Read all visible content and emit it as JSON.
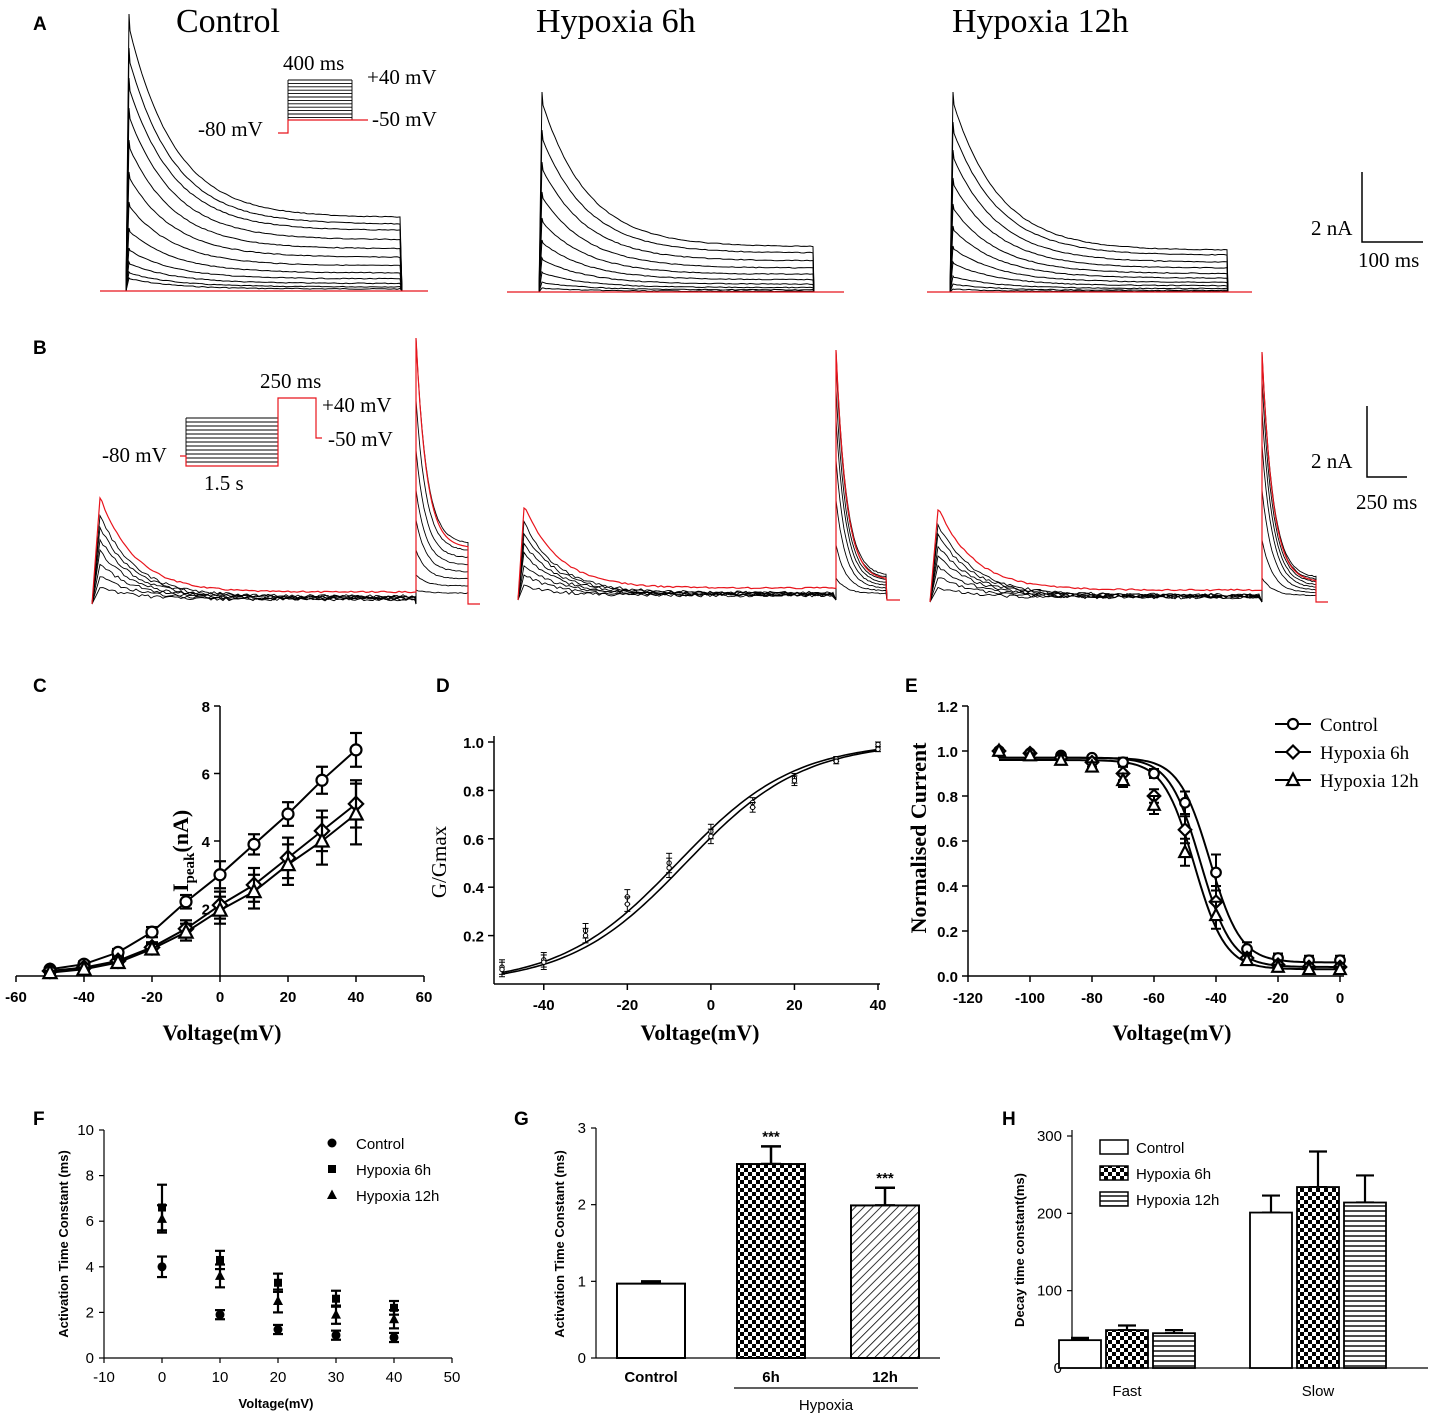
{
  "panel_labels": {
    "A": "A",
    "B": "B",
    "C": "C",
    "D": "D",
    "E": "E",
    "F": "F",
    "G": "G",
    "H": "H"
  },
  "traces": {
    "titles": [
      "Control",
      "Hypoxia 6h",
      "Hypoxia 12h"
    ],
    "protocol_a": {
      "duration": "400 ms",
      "v_top": "+40 mV",
      "v_hold": "-80 mV",
      "v_low": "-50 mV"
    },
    "protocol_b": {
      "duration": "250 ms",
      "v_top": "+40 mV",
      "v_hold": "-80 mV",
      "v_low": "-50 mV",
      "prepulse": "1.5 s"
    },
    "scale_a": {
      "current": "2 nA",
      "time": "100 ms"
    },
    "scale_b": {
      "current": "2 nA",
      "time": "250 ms"
    },
    "colors": {
      "trace": "#000000",
      "highlight": "#e8141c"
    }
  },
  "chart_data": [
    {
      "id": "C",
      "type": "line",
      "title": "",
      "xlabel": "Voltage(mV)",
      "ylabel_main": "I",
      "ylabel_sub": "peak",
      "ylabel_tail": "(nA)",
      "xlim": [
        -60,
        60
      ],
      "ylim": [
        0,
        8
      ],
      "xticks": [
        -60,
        -40,
        -20,
        0,
        20,
        40,
        60
      ],
      "yticks": [
        2,
        4,
        6,
        8
      ],
      "x": [
        -50,
        -40,
        -30,
        -20,
        -10,
        0,
        10,
        20,
        30,
        40
      ],
      "series": [
        {
          "name": "Control",
          "marker": "circle",
          "values": [
            0.2,
            0.35,
            0.7,
            1.3,
            2.2,
            3.0,
            3.9,
            4.8,
            5.8,
            6.7
          ],
          "err": [
            0.05,
            0.08,
            0.1,
            0.15,
            0.2,
            0.4,
            0.3,
            0.35,
            0.4,
            0.5
          ]
        },
        {
          "name": "Hypoxia 6h",
          "marker": "diamond",
          "values": [
            0.15,
            0.25,
            0.45,
            0.85,
            1.4,
            2.1,
            2.7,
            3.5,
            4.3,
            5.1
          ],
          "err": [
            0.05,
            0.05,
            0.1,
            0.15,
            0.25,
            0.4,
            0.5,
            0.6,
            0.6,
            0.7
          ]
        },
        {
          "name": "Hypoxia 12h",
          "marker": "triangle",
          "values": [
            0.1,
            0.2,
            0.4,
            0.8,
            1.3,
            1.95,
            2.5,
            3.3,
            4.0,
            4.8
          ],
          "err": [
            0.05,
            0.05,
            0.1,
            0.15,
            0.25,
            0.4,
            0.5,
            0.6,
            0.7,
            0.9
          ]
        }
      ]
    },
    {
      "id": "D",
      "type": "line",
      "title": "",
      "xlabel": "Voltage(mV)",
      "ylabel": "G/Gmax",
      "xlim": [
        -50,
        40
      ],
      "ylim": [
        0,
        1.0
      ],
      "xticks": [
        -40,
        -20,
        0,
        20,
        40
      ],
      "yticks": [
        0.2,
        0.4,
        0.6,
        0.8,
        1.0
      ],
      "x": [
        -50,
        -40,
        -30,
        -20,
        -10,
        0,
        10,
        20,
        30,
        40
      ],
      "series": [
        {
          "name": "Control",
          "values": [
            0.07,
            0.1,
            0.22,
            0.36,
            0.5,
            0.63,
            0.75,
            0.85,
            0.93,
            0.99
          ],
          "err": [
            0.03,
            0.03,
            0.03,
            0.03,
            0.04,
            0.03,
            0.02,
            0.02,
            0.01,
            0.01
          ]
        },
        {
          "name": "Hypoxia",
          "values": [
            0.06,
            0.09,
            0.2,
            0.33,
            0.48,
            0.61,
            0.73,
            0.84,
            0.92,
            0.97
          ],
          "err": [
            0.03,
            0.03,
            0.03,
            0.03,
            0.04,
            0.03,
            0.02,
            0.02,
            0.01,
            0.01
          ]
        }
      ],
      "fits": [
        {
          "name": "Control",
          "v_half": -8,
          "k": 14
        },
        {
          "name": "Hypoxia",
          "v_half": -6,
          "k": 14
        }
      ]
    },
    {
      "id": "E",
      "type": "line",
      "title": "",
      "xlabel": "Voltage(mV)",
      "ylabel": "Normalised Current",
      "xlim": [
        -120,
        0
      ],
      "ylim": [
        0,
        1.2
      ],
      "xticks": [
        -120,
        -100,
        -80,
        -60,
        -40,
        -20,
        0
      ],
      "yticks": [
        0.0,
        0.2,
        0.4,
        0.6,
        0.8,
        1.0,
        1.2
      ],
      "x": [
        -110,
        -100,
        -90,
        -80,
        -70,
        -60,
        -50,
        -40,
        -30,
        -20,
        -10,
        0
      ],
      "series": [
        {
          "name": "Control",
          "marker": "circle",
          "values": [
            1.0,
            0.99,
            0.98,
            0.97,
            0.95,
            0.9,
            0.77,
            0.46,
            0.12,
            0.08,
            0.07,
            0.07
          ],
          "err": [
            0.01,
            0.01,
            0.01,
            0.01,
            0.02,
            0.02,
            0.05,
            0.08,
            0.03,
            0.02,
            0.02,
            0.02
          ]
        },
        {
          "name": "Hypoxia 6h",
          "marker": "diamond",
          "values": [
            1.0,
            0.99,
            0.97,
            0.95,
            0.9,
            0.8,
            0.65,
            0.33,
            0.08,
            0.05,
            0.04,
            0.04
          ],
          "err": [
            0.01,
            0.01,
            0.01,
            0.02,
            0.03,
            0.03,
            0.06,
            0.07,
            0.02,
            0.02,
            0.01,
            0.01
          ]
        },
        {
          "name": "Hypoxia 12h",
          "marker": "triangle",
          "values": [
            1.0,
            0.98,
            0.96,
            0.93,
            0.87,
            0.76,
            0.55,
            0.27,
            0.07,
            0.04,
            0.03,
            0.03
          ],
          "err": [
            0.01,
            0.01,
            0.02,
            0.02,
            0.03,
            0.04,
            0.06,
            0.06,
            0.02,
            0.01,
            0.01,
            0.01
          ]
        }
      ],
      "fits": [
        {
          "name": "Control",
          "v_half": -42,
          "k": 5,
          "top": 0.97,
          "bottom": 0.06
        },
        {
          "name": "Hypoxia 6h",
          "v_half": -45,
          "k": 5,
          "top": 0.97,
          "bottom": 0.04
        },
        {
          "name": "Hypoxia 12h",
          "v_half": -47,
          "k": 5,
          "top": 0.96,
          "bottom": 0.03
        }
      ]
    },
    {
      "id": "F",
      "type": "scatter",
      "title": "",
      "xlabel": "Voltage(mV)",
      "ylabel": "Activation Time Constant (ms)",
      "xlim": [
        -10,
        50
      ],
      "ylim": [
        0,
        10
      ],
      "xticks": [
        -10,
        0,
        10,
        20,
        30,
        40,
        50
      ],
      "yticks": [
        0,
        2,
        4,
        6,
        8,
        10
      ],
      "x": [
        0,
        10,
        20,
        30,
        40
      ],
      "series": [
        {
          "name": "Control",
          "marker": "circle",
          "values": [
            4.0,
            1.9,
            1.25,
            1.0,
            0.9
          ],
          "err": [
            0.45,
            0.2,
            0.2,
            0.2,
            0.2
          ]
        },
        {
          "name": "Hypoxia 6h",
          "marker": "square",
          "values": [
            6.6,
            4.3,
            3.3,
            2.6,
            2.2
          ],
          "err": [
            1.0,
            0.4,
            0.4,
            0.35,
            0.3
          ]
        },
        {
          "name": "Hypoxia 12h",
          "marker": "triangle",
          "values": [
            6.1,
            3.6,
            2.5,
            1.9,
            1.7
          ],
          "err": [
            0.6,
            0.5,
            0.5,
            0.4,
            0.4
          ]
        }
      ]
    },
    {
      "id": "G",
      "type": "bar",
      "title": "",
      "xlabel": "",
      "ylabel": "Activation Time Constant (ms)",
      "ylim": [
        0,
        3
      ],
      "yticks": [
        0,
        1,
        2,
        3
      ],
      "categories": [
        "Control",
        "6h",
        "12h"
      ],
      "group_label": "Hypoxia",
      "values": [
        0.97,
        2.53,
        1.99
      ],
      "err": [
        0.03,
        0.23,
        0.23
      ],
      "patterns": [
        "none",
        "checker",
        "diagonal"
      ],
      "annotations": [
        "",
        "***",
        "***"
      ]
    },
    {
      "id": "H",
      "type": "bar",
      "title": "",
      "xlabel": "",
      "ylabel": "Decay time constant(ms)",
      "ylim": [
        0,
        300
      ],
      "yticks": [
        0,
        100,
        200,
        300
      ],
      "categories": [
        "Fast",
        "Slow"
      ],
      "series": [
        {
          "name": "Control",
          "pattern": "none",
          "values": [
            36,
            201
          ],
          "err": [
            3,
            22
          ]
        },
        {
          "name": "Hypoxia 6h",
          "pattern": "checker",
          "values": [
            49,
            234
          ],
          "err": [
            6,
            46
          ]
        },
        {
          "name": "Hypoxia 12h",
          "pattern": "horizontal",
          "values": [
            45,
            214
          ],
          "err": [
            4,
            35
          ]
        }
      ]
    }
  ]
}
